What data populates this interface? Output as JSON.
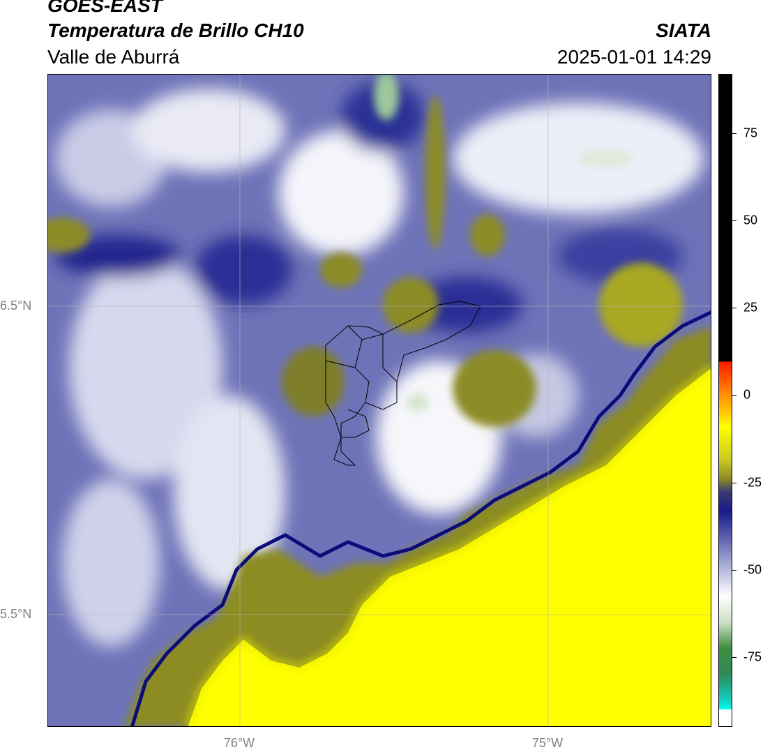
{
  "header": {
    "satellite": "GOES-EAST",
    "product": "Temperatura de Brillo CH10",
    "region": "Valle de Aburrá",
    "agency": "SIATA",
    "datetime": "2025-01-01 14:29"
  },
  "axes": {
    "lat_labels": [
      "6.5°N",
      "5.5°N"
    ],
    "lon_labels": [
      "76°W",
      "75°W"
    ]
  },
  "colorbar": {
    "ticks": [
      75,
      50,
      25,
      0,
      -25,
      -50,
      -75
    ],
    "labels": [
      "75",
      "50",
      "25",
      "0",
      "-25",
      "-50",
      "-75"
    ],
    "range": [
      -95,
      92
    ],
    "colors": {
      "very_cold": "#ffffff",
      "cyan": "#00e5e5",
      "green": "#2e8b3a",
      "light_green": "#e8f0e0",
      "lavender": "#a9aed6",
      "navy": "#1a1a8c",
      "olive": "#8f8f1e",
      "yellow": "#ffff00",
      "orange": "#ff8c00",
      "red": "#ff1a00",
      "black": "#000000"
    }
  }
}
